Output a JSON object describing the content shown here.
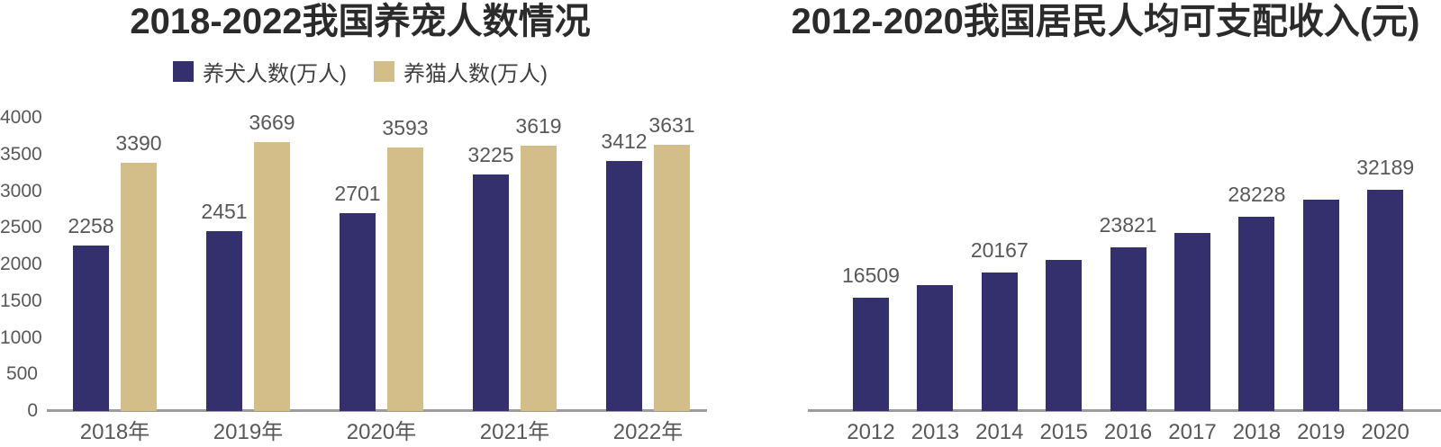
{
  "colors": {
    "navy_bar": "#34306D",
    "tan_bar": "#D3BE8A",
    "axis_line": "#9C9C9C",
    "tick_label": "#595757",
    "value_label": "#595757",
    "title_text": "#2B2B2B",
    "legend_text": "#3F3F3F",
    "background": "#FFFFFF"
  },
  "chart_data": [
    {
      "type": "bar",
      "title": "2018-2022我国养宠人数情况",
      "categories": [
        "2018年",
        "2019年",
        "2020年",
        "2021年",
        "2022年"
      ],
      "series": [
        {
          "name": "养犬人数(万人)",
          "color": "#34306D",
          "values": [
            2258,
            2451,
            2701,
            3225,
            3412
          ]
        },
        {
          "name": "养猫人数(万人)",
          "color": "#D3BE8A",
          "values": [
            3390,
            3669,
            3593,
            3619,
            3631
          ]
        }
      ],
      "value_labels": [
        [
          2258,
          2451,
          2701,
          3225,
          3412
        ],
        [
          3390,
          3669,
          3593,
          3619,
          3631
        ]
      ],
      "y_axis": {
        "min": 0,
        "max": 4000,
        "step": 500,
        "tick_labels": [
          "0",
          "500",
          "1000",
          "1500",
          "2000",
          "2500",
          "3000",
          "3500",
          "4000"
        ]
      },
      "legend_position": "top",
      "grid": false
    },
    {
      "type": "bar",
      "title": "2012-2020我国居民人均可支配收入(元)",
      "categories": [
        "2012",
        "2013",
        "2014",
        "2015",
        "2016",
        "2017",
        "2018",
        "2019",
        "2020"
      ],
      "series": [
        {
          "name": "人均可支配收入(元)",
          "color": "#34306D",
          "values": [
            16509,
            18311,
            20167,
            21966,
            23821,
            25974,
            28228,
            30733,
            32189
          ]
        }
      ],
      "value_labels": [
        [
          16509,
          null,
          20167,
          null,
          23821,
          null,
          28228,
          null,
          32189
        ]
      ],
      "y_axis": {
        "min": 0,
        "max": 32189,
        "ticks_visible": false
      },
      "legend_position": "none",
      "grid": false
    }
  ]
}
